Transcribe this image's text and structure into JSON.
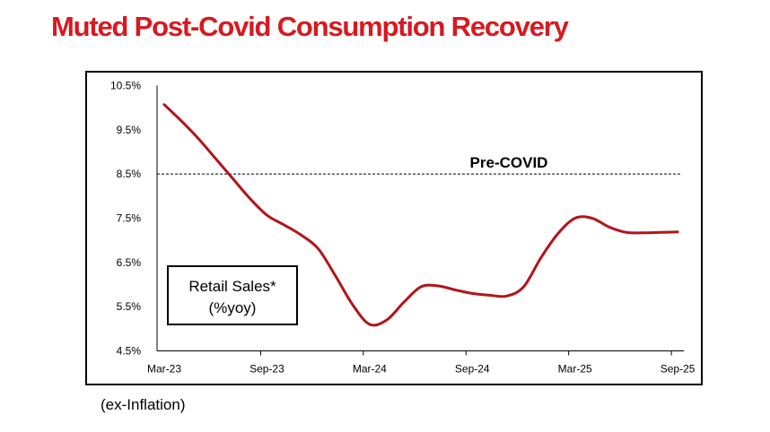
{
  "title": "Muted Post-Covid Consumption Recovery",
  "footnote": "(ex-Inflation)",
  "colors": {
    "title": "#d71920",
    "line": "#b3141b",
    "reference": "#000000"
  },
  "chart_data": {
    "type": "line",
    "title": "Muted Post-Covid Consumption Recovery",
    "xlabel": "",
    "ylabel": "",
    "x_tick_labels": [
      "Mar-23",
      "Sep-23",
      "Mar-24",
      "Sep-24",
      "Mar-25",
      "Sep-25"
    ],
    "y_tick_labels": [
      "10.5%",
      "9.5%",
      "8.5%",
      "7.5%",
      "6.5%",
      "5.5%",
      "4.5%"
    ],
    "ylim": [
      4.5,
      10.5
    ],
    "grid": false,
    "x_months_from_start": [
      0,
      1,
      2,
      3,
      4,
      5,
      6,
      7,
      8,
      9,
      10,
      11,
      12,
      13,
      14,
      15,
      16,
      17,
      18,
      19,
      20,
      21,
      22,
      23,
      24,
      25,
      26,
      27,
      28,
      29,
      30
    ],
    "series": [
      {
        "name": "Retail Sales* (%yoy)",
        "values": [
          10.07,
          9.7,
          9.3,
          8.85,
          8.4,
          7.95,
          7.57,
          7.35,
          7.12,
          6.81,
          6.2,
          5.55,
          5.1,
          5.2,
          5.6,
          5.95,
          5.97,
          5.88,
          5.8,
          5.76,
          5.74,
          5.95,
          6.6,
          7.15,
          7.5,
          7.5,
          7.3,
          7.18,
          7.17,
          7.18,
          7.19
        ]
      }
    ],
    "reference_line": {
      "label": "Pre-COVID",
      "value": 8.5
    },
    "annotation_box": {
      "line1": "Retail Sales*",
      "line2": "(%yoy)"
    }
  }
}
